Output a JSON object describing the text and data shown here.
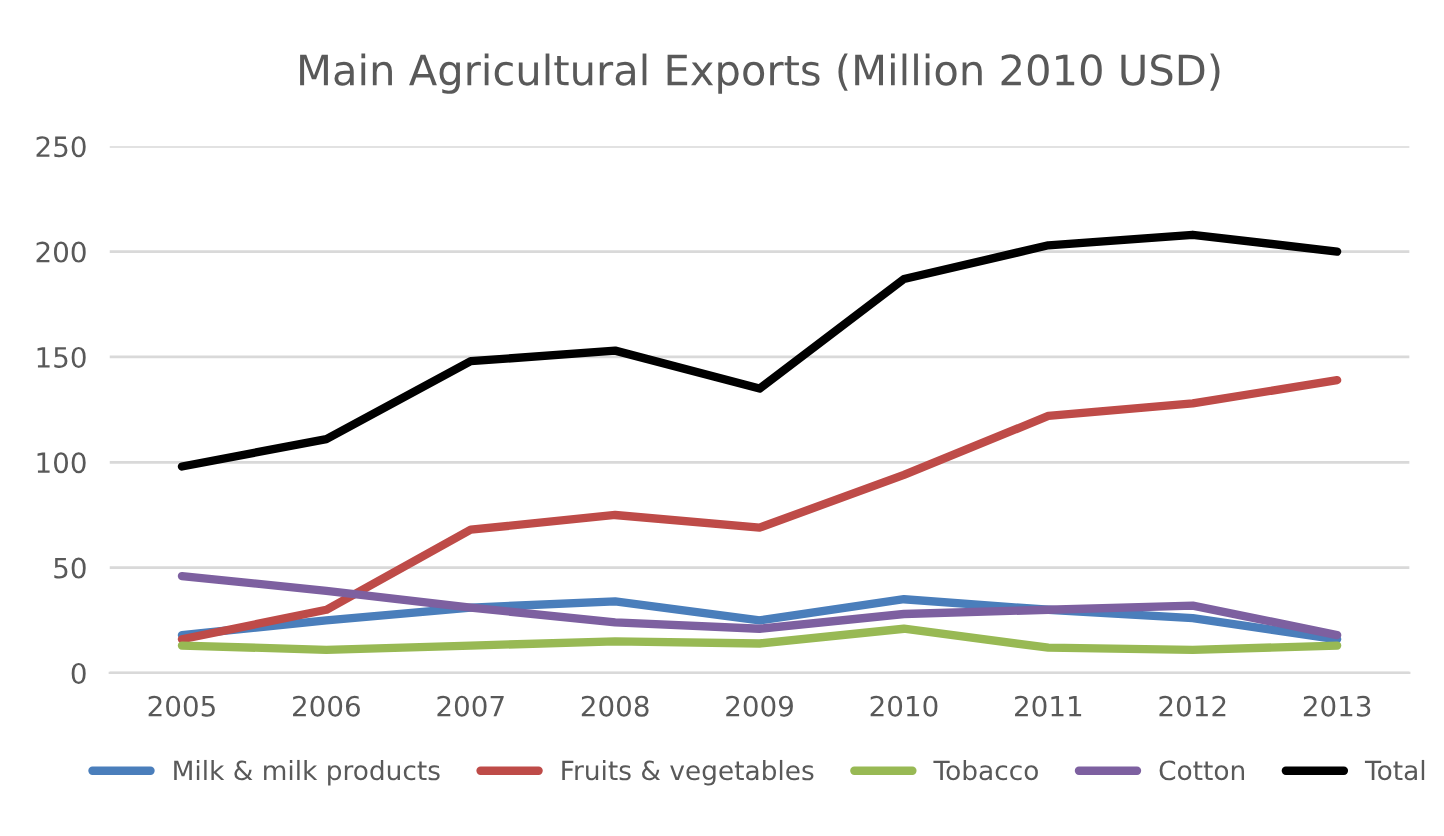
{
  "chart_data": {
    "type": "line",
    "title": "Main Agricultural Exports (Million 2010 USD)",
    "categories": [
      "2005",
      "2006",
      "2007",
      "2008",
      "2009",
      "2010",
      "2011",
      "2012",
      "2013"
    ],
    "series": [
      {
        "name": "Milk & milk products",
        "color": "#4a7ebb",
        "values": [
          18,
          25,
          31,
          34,
          25,
          35,
          30,
          26,
          16
        ]
      },
      {
        "name": "Fruits & vegetables",
        "color": "#be4b48",
        "values": [
          16,
          30,
          68,
          75,
          69,
          94,
          122,
          128,
          139
        ]
      },
      {
        "name": "Tobacco",
        "color": "#98b954",
        "values": [
          13,
          11,
          13,
          15,
          14,
          21,
          12,
          11,
          13
        ]
      },
      {
        "name": "Cotton",
        "color": "#7d60a0",
        "values": [
          46,
          39,
          31,
          24,
          21,
          28,
          30,
          32,
          18
        ]
      },
      {
        "name": "Total",
        "color": "#000000",
        "values": [
          98,
          111,
          148,
          153,
          135,
          187,
          203,
          208,
          200
        ]
      }
    ],
    "ylim": [
      0,
      250
    ],
    "yticks": [
      0,
      50,
      100,
      150,
      200,
      250
    ],
    "grid": "y",
    "legend": "bottom",
    "marker": "none",
    "line_style": "solid"
  }
}
